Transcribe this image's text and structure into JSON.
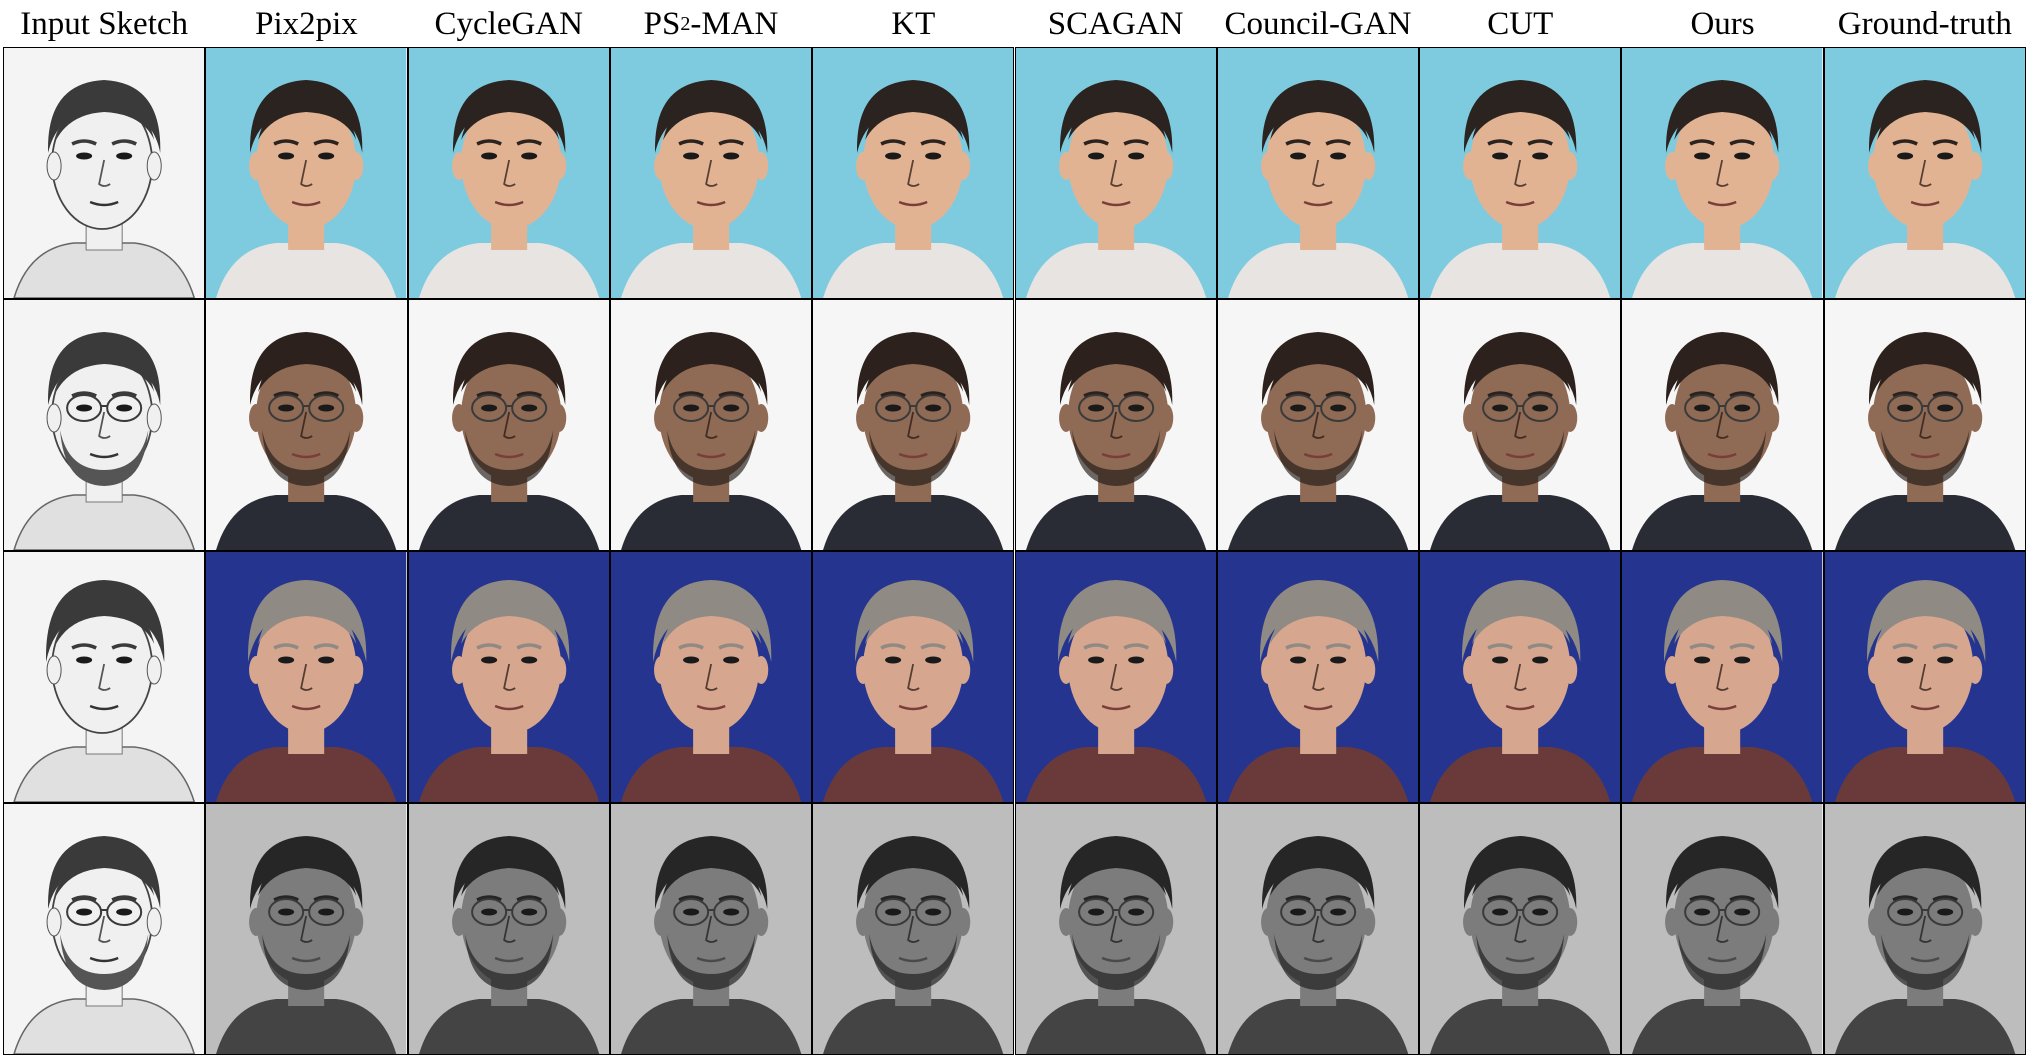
{
  "figure": {
    "columns": [
      {
        "key": "input",
        "label": "Input Sketch"
      },
      {
        "key": "pix2pix",
        "label": "Pix2pix"
      },
      {
        "key": "cyclegan",
        "label": "CycleGAN"
      },
      {
        "key": "ps2man",
        "label": "PS",
        "sup": "2",
        "suffix": "-MAN"
      },
      {
        "key": "kt",
        "label": "KT"
      },
      {
        "key": "scagan",
        "label": "SCAGAN"
      },
      {
        "key": "councilgan",
        "label": "Council-GAN"
      },
      {
        "key": "cut",
        "label": "CUT"
      },
      {
        "key": "ours",
        "label": "Ours"
      },
      {
        "key": "gt",
        "label": "Ground-truth"
      }
    ],
    "rows": [
      {
        "subject": "young-man-short-hair",
        "background": "#7ecbe0",
        "skin": "#e2b393",
        "hair": "#2a2320",
        "shirt": "#e8e4e2",
        "glasses": false,
        "beard": false,
        "gray_hair": false,
        "grayscale": false
      },
      {
        "subject": "man-glasses-stubble",
        "background": "#f6f6f6",
        "skin": "#8f6a55",
        "hair": "#2c211c",
        "shirt": "#2a2c35",
        "glasses": true,
        "beard": true,
        "gray_hair": false,
        "grayscale": false
      },
      {
        "subject": "older-man-gray-hair",
        "background": "#25358f",
        "skin": "#d7a68f",
        "hair": "#8f8a84",
        "shirt": "#6a3a3a",
        "glasses": false,
        "beard": false,
        "gray_hair": true,
        "grayscale": false
      },
      {
        "subject": "man-glasses-full-beard",
        "background": "#bdbdbd",
        "skin": "#7c7c7c",
        "hair": "#262626",
        "shirt": "#444444",
        "glasses": true,
        "beard": true,
        "gray_hair": false,
        "grayscale": true
      }
    ]
  }
}
